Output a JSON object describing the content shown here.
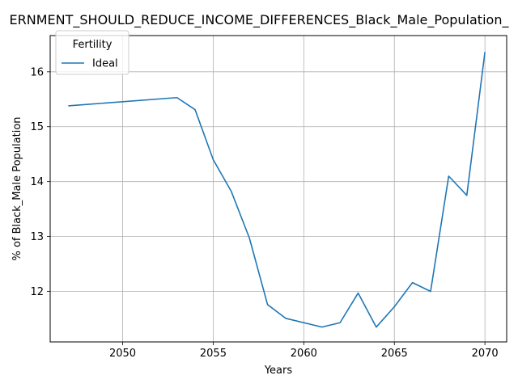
{
  "chart_data": {
    "type": "line",
    "title": "ERNMENT_SHOULD_REDUCE_INCOME_DIFFERENCES_Black_Male_Population_",
    "xlabel": "Years",
    "ylabel": "% of Black_Male Population",
    "xlim": [
      2046.0,
      2071.2
    ],
    "ylim": [
      11.08,
      16.66
    ],
    "xticks": [
      2050,
      2055,
      2060,
      2065,
      2070
    ],
    "yticks": [
      12,
      13,
      14,
      15,
      16
    ],
    "grid": true,
    "legend": {
      "title": "Fertility",
      "placement": "top-left"
    },
    "series": [
      {
        "name": "Ideal",
        "color": "#1f77b4",
        "x": [
          2047,
          2053,
          2054,
          2055,
          2056,
          2057,
          2058,
          2059,
          2061,
          2062,
          2063,
          2064,
          2065,
          2066,
          2067,
          2068,
          2069,
          2070
        ],
        "y": [
          15.38,
          15.53,
          15.31,
          14.4,
          13.82,
          12.97,
          11.76,
          11.51,
          11.35,
          11.43,
          11.97,
          11.35,
          11.72,
          12.16,
          12.0,
          14.1,
          13.75,
          16.36
        ]
      }
    ]
  }
}
